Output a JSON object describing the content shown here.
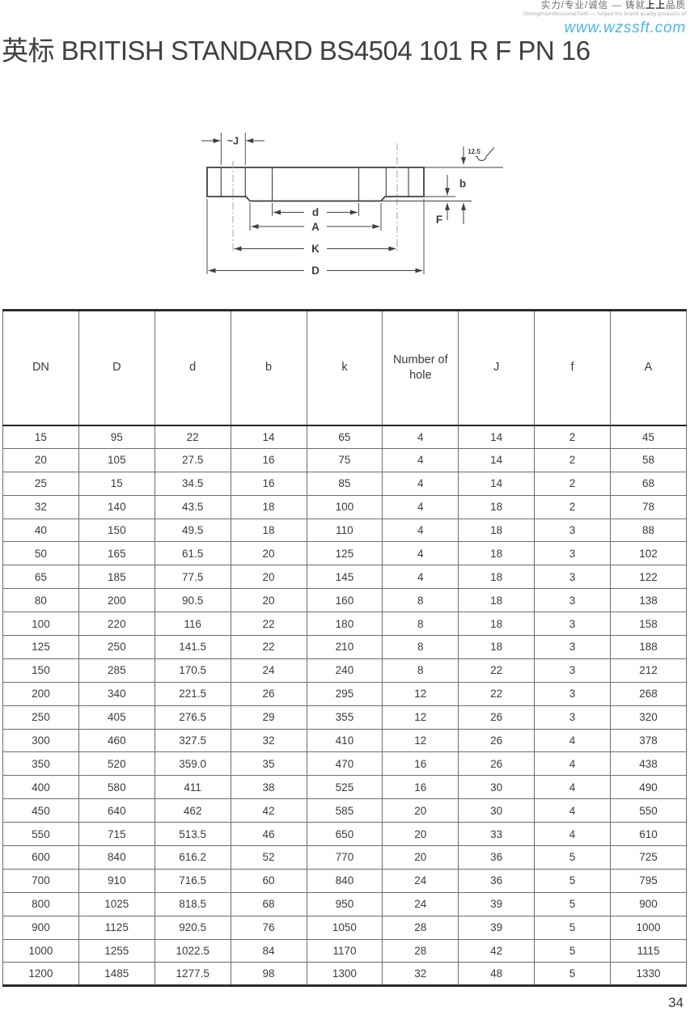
{
  "header": {
    "slogan_cn_pre": "实力/专业/诚信 — 铸就",
    "slogan_cn_bold": "上上",
    "slogan_cn_post": "品质",
    "slogan_en": "Strength/professional/faith — forged the brand quality products of",
    "website": "www.wzssft.com"
  },
  "title": "英标 BRITISH STANDARD BS4504 101 R F PN 16",
  "drawing": {
    "labels": {
      "hub_width": "~J",
      "roughness": "12.5",
      "thickness": "b",
      "face_height": "F",
      "bore": "d",
      "face_diameter": "A",
      "bolt_circle": "K",
      "outer_diameter": "D"
    }
  },
  "table": {
    "columns": [
      "DN",
      "D",
      "d",
      "b",
      "k",
      "Number of hole",
      "J",
      "f",
      "A"
    ],
    "rows": [
      [
        "15",
        "95",
        "22",
        "14",
        "65",
        "4",
        "14",
        "2",
        "45"
      ],
      [
        "20",
        "105",
        "27.5",
        "16",
        "75",
        "4",
        "14",
        "2",
        "58"
      ],
      [
        "25",
        "15",
        "34.5",
        "16",
        "85",
        "4",
        "14",
        "2",
        "68"
      ],
      [
        "32",
        "140",
        "43.5",
        "18",
        "100",
        "4",
        "18",
        "2",
        "78"
      ],
      [
        "40",
        "150",
        "49.5",
        "18",
        "110",
        "4",
        "18",
        "3",
        "88"
      ],
      [
        "50",
        "165",
        "61.5",
        "20",
        "125",
        "4",
        "18",
        "3",
        "102"
      ],
      [
        "65",
        "185",
        "77.5",
        "20",
        "145",
        "4",
        "18",
        "3",
        "122"
      ],
      [
        "80",
        "200",
        "90.5",
        "20",
        "160",
        "8",
        "18",
        "3",
        "138"
      ],
      [
        "100",
        "220",
        "116",
        "22",
        "180",
        "8",
        "18",
        "3",
        "158"
      ],
      [
        "125",
        "250",
        "141.5",
        "22",
        "210",
        "8",
        "18",
        "3",
        "188"
      ],
      [
        "150",
        "285",
        "170.5",
        "24",
        "240",
        "8",
        "22",
        "3",
        "212"
      ],
      [
        "200",
        "340",
        "221.5",
        "26",
        "295",
        "12",
        "22",
        "3",
        "268"
      ],
      [
        "250",
        "405",
        "276.5",
        "29",
        "355",
        "12",
        "26",
        "3",
        "320"
      ],
      [
        "300",
        "460",
        "327.5",
        "32",
        "410",
        "12",
        "26",
        "4",
        "378"
      ],
      [
        "350",
        "520",
        "359.0",
        "35",
        "470",
        "16",
        "26",
        "4",
        "438"
      ],
      [
        "400",
        "580",
        "411",
        "38",
        "525",
        "16",
        "30",
        "4",
        "490"
      ],
      [
        "450",
        "640",
        "462",
        "42",
        "585",
        "20",
        "30",
        "4",
        "550"
      ],
      [
        "550",
        "715",
        "513.5",
        "46",
        "650",
        "20",
        "33",
        "4",
        "610"
      ],
      [
        "600",
        "840",
        "616.2",
        "52",
        "770",
        "20",
        "36",
        "5",
        "725"
      ],
      [
        "700",
        "910",
        "716.5",
        "60",
        "840",
        "24",
        "36",
        "5",
        "795"
      ],
      [
        "800",
        "1025",
        "818.5",
        "68",
        "950",
        "24",
        "39",
        "5",
        "900"
      ],
      [
        "900",
        "1125",
        "920.5",
        "76",
        "1050",
        "28",
        "39",
        "5",
        "1000"
      ],
      [
        "1000",
        "1255",
        "1022.5",
        "84",
        "1170",
        "28",
        "42",
        "5",
        "1115"
      ],
      [
        "1200",
        "1485",
        "1277.5",
        "98",
        "1300",
        "32",
        "48",
        "5",
        "1330"
      ]
    ]
  },
  "page_number": "34"
}
